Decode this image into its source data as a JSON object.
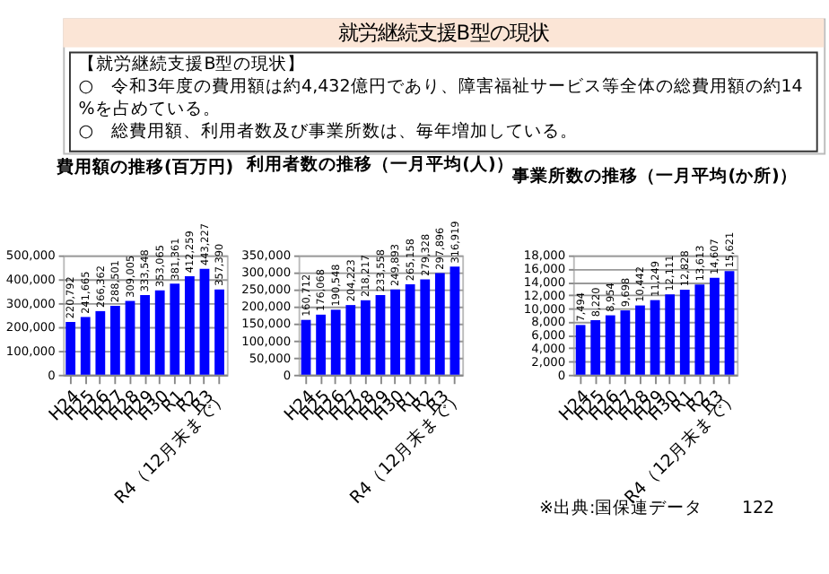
{
  "chart_data": [
    {
      "type": "other",
      "title": "就労継続支援B型の現状",
      "annotations": [
        "【就労継続支援B型の現状】",
        "○　令和3年度の費用額は約4,432億円であり、障害福祉サービス等全体の総費用額の約14%を占めている。",
        "○　総費用額、利用者数及び事業所数は、毎年増加している。"
      ]
    },
    {
      "type": "bar",
      "title": "費用額の推移(百万円)",
      "categories": [
        "H24",
        "H25",
        "H26",
        "H27",
        "H28",
        "H29",
        "H30",
        "R1",
        "R2",
        "R3",
        "R4（12月末まで）"
      ],
      "values": [
        220792,
        241665,
        266362,
        288501,
        309005,
        333548,
        353065,
        381361,
        412259,
        443227,
        357390
      ],
      "value_labels": [
        "220,792",
        "241,665",
        "266,362",
        "288,501",
        "309,005",
        "333,548",
        "353,065",
        "381,361",
        "412,259",
        "443,227",
        "357,390"
      ],
      "color": "#0000ff",
      "ylim": [
        0,
        500000
      ],
      "yticks": [
        0,
        {
          "value": 100000,
          "label": "100,000"
        },
        {
          "value": 200000,
          "label": "200,000"
        },
        {
          "value": 300000,
          "label": "300,000"
        },
        {
          "value": 400000,
          "label": "400,000"
        },
        {
          "value": 500000,
          "label": "500,000"
        }
      ],
      "grid": "y"
    },
    {
      "type": "bar",
      "title": "利用者数の推移（一月平均(人)）",
      "categories": [
        "H24",
        "H25",
        "H26",
        "H27",
        "H28",
        "H29",
        "H30",
        "R1",
        "R2",
        "R3",
        "R4（12月末まで）"
      ],
      "values": [
        160712,
        176068,
        190548,
        204223,
        218217,
        233558,
        249893,
        265158,
        279328,
        297896,
        316919
      ],
      "value_labels": [
        "160,712",
        "176,068",
        "190,548",
        "204,223",
        "218,217",
        "233,558",
        "249,893",
        "265,158",
        "279,328",
        "297,896",
        "316,919"
      ],
      "color": "#0000ff",
      "ylim": [
        0,
        350000
      ],
      "yticks": [
        0,
        {
          "value": 50000,
          "label": "50,000"
        },
        {
          "value": 100000,
          "label": "100,000"
        },
        {
          "value": 150000,
          "label": "150,000"
        },
        {
          "value": 200000,
          "label": "200,000"
        },
        {
          "value": 250000,
          "label": "250,000"
        },
        {
          "value": 300000,
          "label": "300,000"
        },
        {
          "value": 350000,
          "label": "350,000"
        }
      ],
      "grid": "y"
    },
    {
      "type": "bar",
      "title": "事業所数の推移（一月平均(か所)）",
      "categories": [
        "H24",
        "H25",
        "H26",
        "H27",
        "H28",
        "H29",
        "H30",
        "R1",
        "R2",
        "R3",
        "R4（12月末まで）"
      ],
      "values": [
        7494,
        8220,
        8954,
        9698,
        10442,
        11249,
        12111,
        12828,
        13613,
        14607,
        15621
      ],
      "value_labels": [
        "7,494",
        "8,220",
        "8,954",
        "9,698",
        "10,442",
        "11,249",
        "12,111",
        "12,828",
        "13,613",
        "14,607",
        "15,621"
      ],
      "color": "#0000ff",
      "ylim": [
        0,
        18000
      ],
      "yticks": [
        0,
        {
          "value": 2000,
          "label": "2,000"
        },
        {
          "value": 4000,
          "label": "4,000"
        },
        {
          "value": 6000,
          "label": "6,000"
        },
        {
          "value": 8000,
          "label": "8,000"
        },
        {
          "value": 10000,
          "label": "10,000"
        },
        {
          "value": 12000,
          "label": "12,000"
        },
        {
          "value": 14000,
          "label": "14,000"
        },
        {
          "value": 16000,
          "label": "16,000"
        },
        {
          "value": 18000,
          "label": "18,000"
        }
      ],
      "grid": "y",
      "annotations": [
        "※出典:国保連データ",
        "122"
      ]
    }
  ]
}
